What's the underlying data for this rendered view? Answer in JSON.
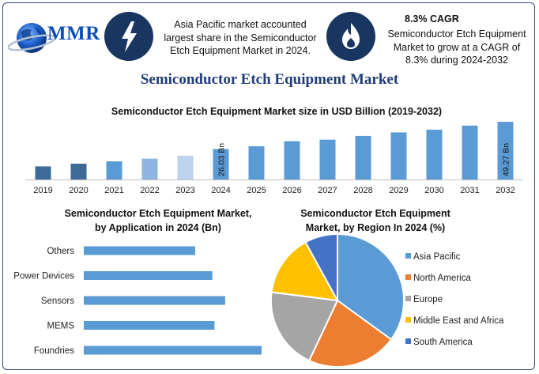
{
  "brand": {
    "logo_text": "MMR"
  },
  "header": {
    "info1": [
      "Asia Pacific market accounted",
      "largest share in the Semiconductor",
      "Etch Equipment Market in 2024."
    ],
    "cagr_title": "8.3% CAGR",
    "info2": [
      "Semiconductor Etch Equipment",
      "Market to grow at a CAGR of",
      "8.3% during 2024-2032"
    ]
  },
  "main_title": "Semiconductor Etch Equipment Market",
  "colors": {
    "bar_dark": "#3e6a98",
    "bar_main": "#5b9bd5",
    "bar_light1": "#8fb4e2",
    "bar_light2": "#bcd2ef",
    "asia_pacific": "#5b9bd5",
    "north_america": "#ed7d31",
    "europe": "#a5a5a5",
    "mea": "#ffc000",
    "south_america": "#4472c4"
  },
  "chart_data": [
    {
      "type": "bar",
      "title": "Semiconductor Etch Equipment Market size in USD Billion (2019-2032)",
      "categories": [
        "2019",
        "2020",
        "2021",
        "2022",
        "2023",
        "2024",
        "2025",
        "2026",
        "2027",
        "2028",
        "2029",
        "2030",
        "2031",
        "2032"
      ],
      "values": [
        11.2,
        13.5,
        15.5,
        17.8,
        20.3,
        26.03,
        28.4,
        32.7,
        34.0,
        37.2,
        40.2,
        42.5,
        46.0,
        49.27
      ],
      "value_labels": [
        "",
        "",
        "",
        "",
        "",
        "26.03 Bn",
        "",
        "",
        "",
        "",
        "",
        "",
        "",
        "49.27 Bn"
      ],
      "bar_colors": [
        "bar_dark",
        "bar_dark",
        "bar_main",
        "bar_light1",
        "bar_light2",
        "bar_main",
        "bar_main",
        "bar_main",
        "bar_main",
        "bar_main",
        "bar_main",
        "bar_main",
        "bar_main",
        "bar_main"
      ],
      "ylim": [
        0,
        52
      ]
    },
    {
      "type": "bar",
      "orientation": "horizontal",
      "title": [
        "Semiconductor Etch Equipment Market,",
        "by Application in 2024 (Bn)"
      ],
      "categories": [
        "Others",
        "Power Devices",
        "Sensors",
        "MEMS",
        "Foundries"
      ],
      "values": [
        5.2,
        6.0,
        6.6,
        6.1,
        8.3
      ],
      "xlim": [
        0,
        9
      ]
    },
    {
      "type": "pie",
      "title": [
        "Semiconductor Etch Equipment",
        "Market, by Region In 2024 (%)"
      ],
      "labels": [
        "Asia Pacific",
        "North America",
        "Europe",
        "Middle East and Africa",
        "South America"
      ],
      "values": [
        35,
        22,
        20,
        15,
        8
      ],
      "color_keys": [
        "asia_pacific",
        "north_america",
        "europe",
        "mea",
        "south_america"
      ],
      "legend": "right"
    }
  ]
}
